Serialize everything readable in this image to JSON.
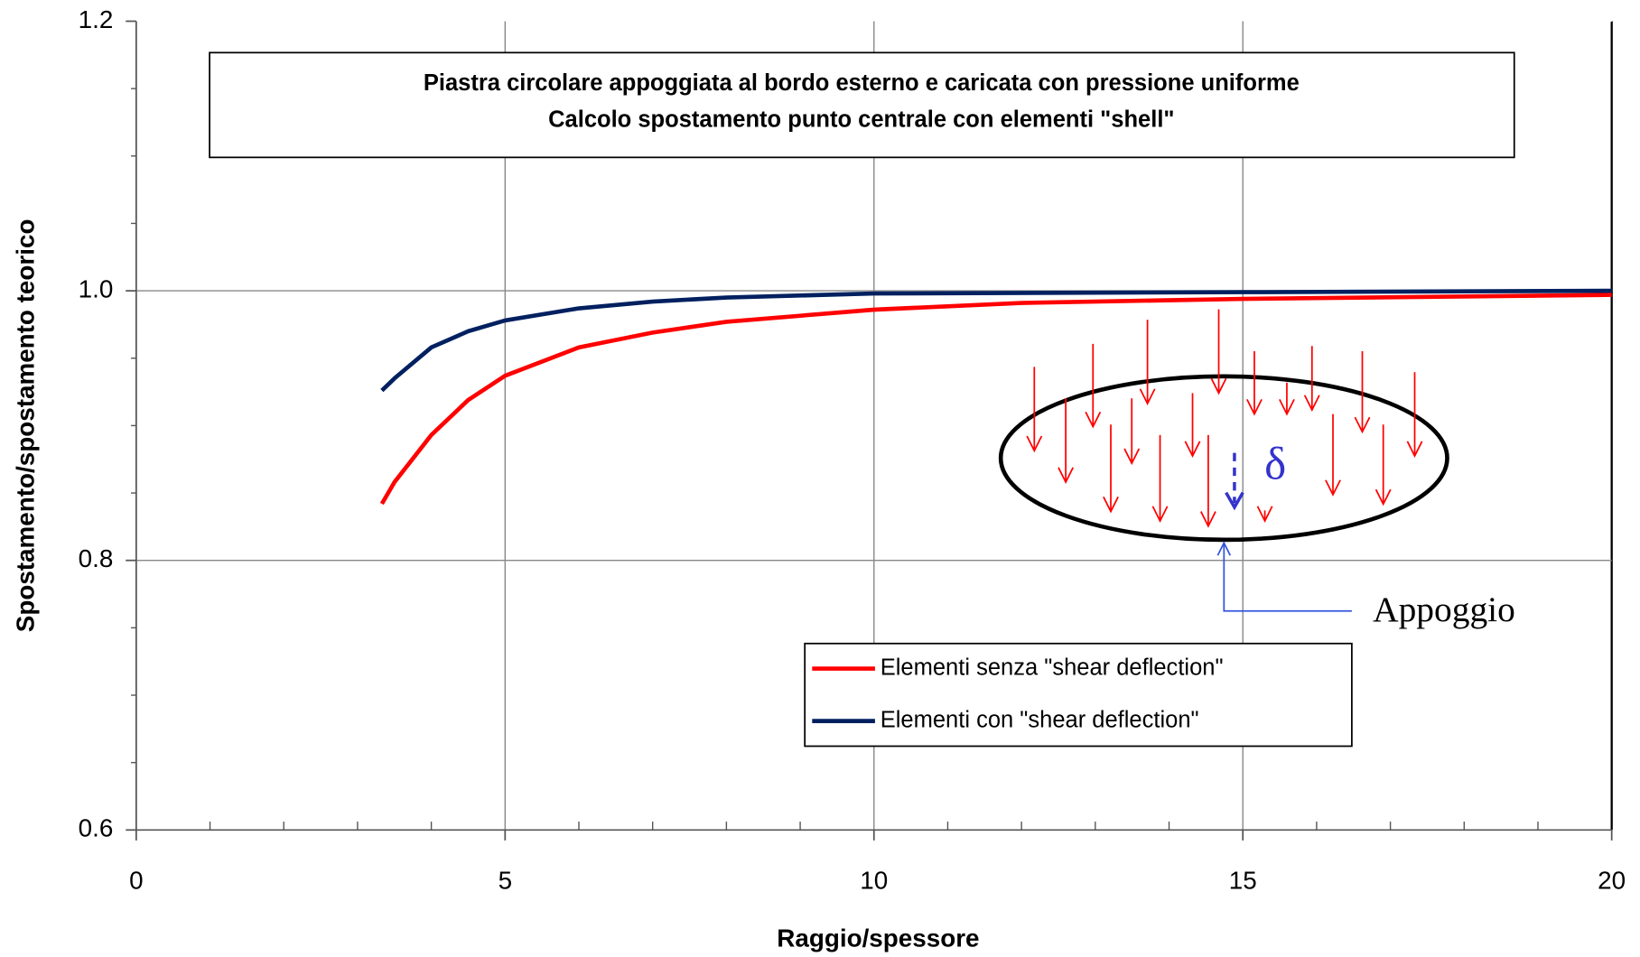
{
  "chart_data": {
    "type": "line",
    "title": [
      "Piastra circolare appoggiata al bordo esterno e caricata con pressione uniforme",
      "Calcolo spostamento punto centrale con elementi \"shell\""
    ],
    "x_label": "Raggio/spessore",
    "y_label": "Spostamento/spostamento teorico",
    "xlim": [
      0,
      20
    ],
    "ylim": [
      0.6,
      1.2
    ],
    "xticks": [
      0,
      5,
      10,
      15,
      20
    ],
    "yticks": [
      0.6,
      0.8,
      {
        "value": 1,
        "label": "1.0"
      },
      1.2
    ],
    "xminorticks": [
      1,
      2,
      3,
      4,
      6,
      7,
      8,
      9,
      11,
      12,
      13,
      14,
      16,
      17,
      18,
      19
    ],
    "yminorticks": [
      0.65,
      0.7,
      0.75,
      0.85,
      0.9,
      0.95,
      1.05,
      1.1,
      1.15
    ],
    "grid": true,
    "series": [
      {
        "name": "Elementi senza \"shear deflection\"",
        "color": "#ff0000",
        "x": [
          3.33,
          3.5,
          4,
          4.5,
          5,
          6,
          7,
          8,
          10,
          12,
          15,
          20
        ],
        "values": [
          0.842,
          0.858,
          0.893,
          0.919,
          0.937,
          0.958,
          0.969,
          0.977,
          0.986,
          0.991,
          0.994,
          0.997
        ]
      },
      {
        "name": "Elementi con \"shear deflection\"",
        "color": "#002060",
        "x": [
          3.33,
          3.5,
          4,
          4.5,
          5,
          6,
          7,
          8,
          10,
          15,
          20
        ],
        "values": [
          0.926,
          0.935,
          0.958,
          0.97,
          0.978,
          0.987,
          0.992,
          0.995,
          0.998,
          0.999,
          1.0
        ]
      }
    ],
    "annotations": [
      "δ",
      "Appoggio"
    ]
  }
}
